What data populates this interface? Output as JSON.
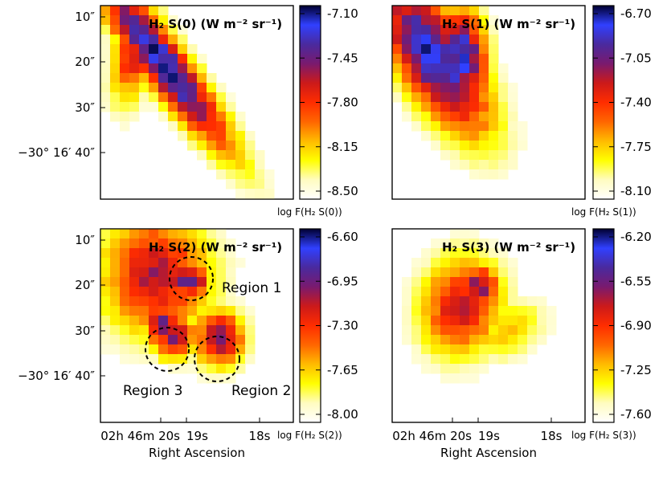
{
  "chart_data": [
    {
      "type": "heatmap",
      "title": "H₂ S(0) (W m⁻² sr⁻¹)",
      "colorbar_label": "log F(H₂ S(0))",
      "colorbar_ticks": [
        "-7.10",
        "-7.45",
        "-7.80",
        "-8.15",
        "-8.50"
      ],
      "colorbar_range": [
        -8.5,
        -7.1
      ],
      "y_tick_labels": [
        "10″",
        "20″",
        "30″",
        "−30° 16′ 40″"
      ],
      "x_tick_labels": [],
      "emission_blobs": [
        {
          "center": [
            "02h 46m 20.0s",
            "−30° 16′ 28″"
          ],
          "peak_log_flux": -7.8
        },
        {
          "center": [
            "02h 46m 19.0s",
            "−30° 16′ 35″"
          ],
          "peak_log_flux": -7.35
        }
      ],
      "regions": [],
      "xlabel": "",
      "ylabel": ""
    },
    {
      "type": "heatmap",
      "title": "H₂ S(1) (W m⁻² sr⁻¹)",
      "colorbar_label": "log F(H₂ S(1))",
      "colorbar_ticks": [
        "-6.70",
        "-7.05",
        "-7.40",
        "-7.75",
        "-8.10"
      ],
      "colorbar_range": [
        -8.1,
        -6.7
      ],
      "y_tick_labels": [],
      "x_tick_labels": [],
      "emission_blobs": [
        {
          "center": [
            "02h 46m 19.2s",
            "−30° 16′ 29″"
          ],
          "peak_log_flux": -7.05
        }
      ],
      "regions": [],
      "xlabel": "",
      "ylabel": ""
    },
    {
      "type": "heatmap",
      "title": "H₂ S(2) (W m⁻² sr⁻¹)",
      "colorbar_label": "log F(H₂ S(2))",
      "colorbar_ticks": [
        "-6.60",
        "-6.95",
        "-7.30",
        "-7.65",
        "-8.00"
      ],
      "colorbar_range": [
        -8.0,
        -6.6
      ],
      "y_tick_labels": [
        "10″",
        "20″",
        "30″",
        "−30° 16′ 40″"
      ],
      "x_tick_labels": [
        "02h 46m 20s",
        "19s",
        "18s"
      ],
      "emission_blobs": [
        {
          "center": [
            "02h 46m 19.5s",
            "−30° 16′ 24″"
          ],
          "peak_log_flux": -7.15
        }
      ],
      "regions": [
        {
          "name": "Region 1"
        },
        {
          "name": "Region 2"
        },
        {
          "name": "Region 3"
        }
      ],
      "xlabel": "Right Ascension",
      "ylabel": ""
    },
    {
      "type": "heatmap",
      "title": "H₂ S(3) (W m⁻² sr⁻¹)",
      "colorbar_label": "log F(H₂ S(3))",
      "colorbar_ticks": [
        "-6.20",
        "-6.55",
        "-6.90",
        "-7.25",
        "-7.60"
      ],
      "colorbar_range": [
        -7.6,
        -6.2
      ],
      "y_tick_labels": [],
      "x_tick_labels": [
        "02h 46m 20s",
        "19s",
        "18s"
      ],
      "emission_blobs": [
        {
          "center": [
            "02h 46m 19.6s",
            "−30° 16′ 26″"
          ],
          "peak_log_flux": -6.95
        }
      ],
      "regions": [],
      "xlabel": "Right Ascension",
      "ylabel": ""
    }
  ],
  "colormap": [
    "#ffffff",
    "#fffcc0",
    "#ffff00",
    "#ffbb00",
    "#ff6600",
    "#ff2d00",
    "#cc1a1a",
    "#7a1a6e",
    "#4a2a9e",
    "#3040ff",
    "#000030"
  ],
  "region_circle_color": "#000000"
}
